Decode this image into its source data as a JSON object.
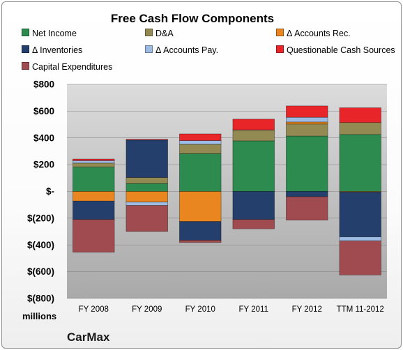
{
  "chart_data": {
    "type": "bar",
    "stacked": true,
    "title": "Free Cash Flow Components",
    "company": "CarMax",
    "units_label": "millions",
    "categories": [
      "FY 2008",
      "FY 2009",
      "FY 2010",
      "FY 2011",
      "FY 2012",
      "TTM 11-2012"
    ],
    "ylim": [
      -800,
      800
    ],
    "yticks": [
      {
        "value": 800,
        "label": "$800"
      },
      {
        "value": 600,
        "label": "$600"
      },
      {
        "value": 400,
        "label": "$400"
      },
      {
        "value": 200,
        "label": "$200"
      },
      {
        "value": 0,
        "label": "$-"
      },
      {
        "value": -200,
        "label": "$(200)"
      },
      {
        "value": -400,
        "label": "$(400)"
      },
      {
        "value": -600,
        "label": "$(600)"
      },
      {
        "value": -800,
        "label": "$(800)"
      }
    ],
    "grid": true,
    "legend_position": "top",
    "series": [
      {
        "name": "Net Income",
        "color": "#2e8b50",
        "values": [
          182,
          59,
          282,
          378,
          414,
          425
        ]
      },
      {
        "name": "D&A",
        "color": "#938953",
        "values": [
          30,
          45,
          70,
          80,
          90,
          90
        ]
      },
      {
        "name": "Δ Accounts Rec.",
        "color": "#e9861f",
        "values": [
          -72,
          -80,
          -225,
          0,
          15,
          -5
        ]
      },
      {
        "name": "Δ Inventories",
        "color": "#243f6b",
        "values": [
          -138,
          280,
          -140,
          -210,
          -40,
          -335
        ]
      },
      {
        "name": "Δ Accounts Pay.",
        "color": "#9dbbe3",
        "values": [
          18,
          -25,
          28,
          2,
          35,
          -30
        ]
      },
      {
        "name": "Questionable Cash Sources",
        "color": "#e8262a",
        "values": [
          12,
          5,
          50,
          80,
          85,
          110
        ]
      },
      {
        "name": "Capital Expenditures",
        "color": "#a04b4f",
        "values": [
          -245,
          -195,
          -17,
          -70,
          -175,
          -255
        ]
      }
    ]
  }
}
